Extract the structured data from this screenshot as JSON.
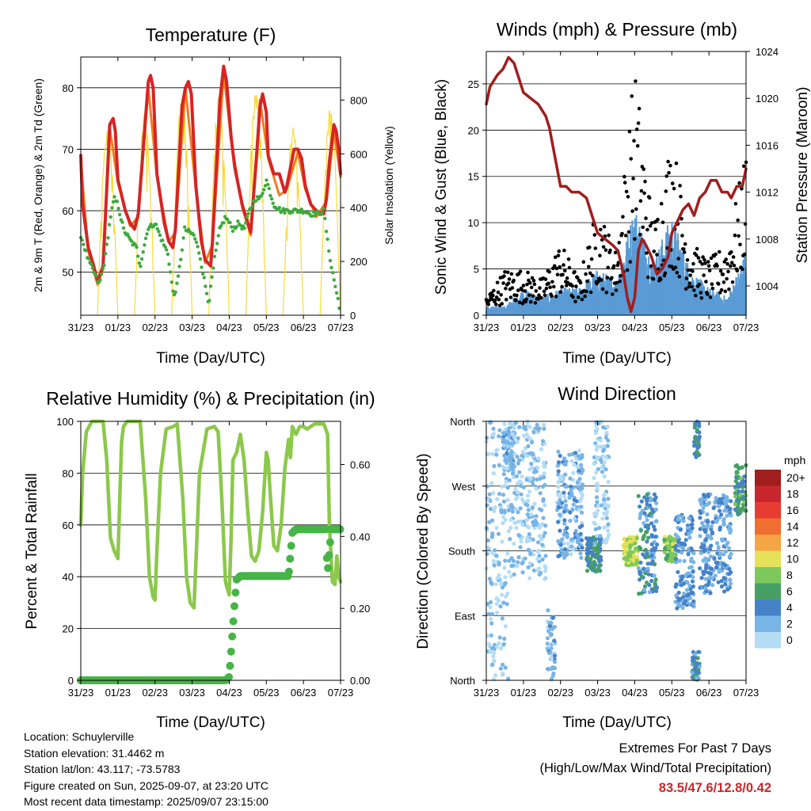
{
  "days": [
    "31/23",
    "01/23",
    "02/23",
    "03/23",
    "04/23",
    "05/23",
    "06/23",
    "07/23"
  ],
  "panels": {
    "temperature": {
      "title": "Temperature (F)",
      "ylabel_left": "2m & 9m T (Red, Orange) & 2m Td (Green)",
      "ylabel_right": "Solar Insolation (Yellow)",
      "xlabel": "Time (Day/UTC)"
    },
    "winds": {
      "title": "Winds (mph) & Pressure (mb)",
      "ylabel_left": "Sonic Wind & Gust (Blue, Black)",
      "ylabel_right": "Station Pressure (Maroon)",
      "xlabel": "Time (Day/UTC)"
    },
    "humidity": {
      "title": "Relative Humidity (%) & Precipitation (in)",
      "ylabel_left": "Percent & Total Rainfall",
      "xlabel": "Time (Day/UTC)"
    },
    "direction": {
      "title": "Wind Direction",
      "ylabel_left": "Direction (Colored By Speed)",
      "xlabel": "Time (Day/UTC)",
      "legend_title": "mph"
    }
  },
  "info": {
    "location": "Location: Schuylerville",
    "elevation": "Station elevation: 31.4462 m",
    "latlon": "Station lat/lon: 43.117; -73.5783",
    "created": "Figure created on Sun, 2025-09-07, at 23:20 UTC",
    "recent": "Most recent data timestamp: 2025/09/07 23:15:00"
  },
  "extremes": {
    "title": "Extremes For Past 7 Days",
    "subtitle": "(High/Low/Max Wind/Total Precipitation)",
    "values": "83.5/47.6/12.8/0.42"
  },
  "chart_data": [
    {
      "type": "line",
      "title": "Temperature (F)",
      "xlabel": "Time (Day/UTC)",
      "ylabel": "2m & 9m T (Red, Orange) & 2m Td (Green)",
      "y2label": "Solar Insolation (Yellow)",
      "x_range_days": [
        0,
        7
      ],
      "ylim": [
        43,
        85
      ],
      "y_ticks": [
        50,
        60,
        70,
        80
      ],
      "y2lim": [
        0,
        960
      ],
      "y2_ticks": [
        0,
        200,
        400,
        600,
        800
      ],
      "grid": true,
      "series": [
        {
          "name": "2m T",
          "color": "#d62424",
          "axis": "left",
          "x": [
            0,
            0.05,
            0.2,
            0.35,
            0.45,
            0.6,
            0.72,
            0.78,
            0.87,
            0.93,
            1,
            1.2,
            1.33,
            1.45,
            1.55,
            1.73,
            1.82,
            1.88,
            1.95,
            2.05,
            2.25,
            2.37,
            2.48,
            2.55,
            2.73,
            2.82,
            2.9,
            2.98,
            3.1,
            3.25,
            3.35,
            3.5,
            3.55,
            3.75,
            3.85,
            3.93,
            4.05,
            4.15,
            4.35,
            4.55,
            4.58,
            4.75,
            4.83,
            4.9,
            5.0,
            5.05,
            5.2,
            5.35,
            5.5,
            5.55,
            5.75,
            5.85,
            5.95,
            6.05,
            6.2,
            6.35,
            6.5,
            6.55,
            6.62,
            6.7,
            6.78,
            6.82,
            6.88,
            6.95,
            7
          ],
          "y": [
            69,
            61,
            54,
            51,
            48.5,
            51,
            66,
            74,
            75,
            73,
            65,
            60,
            58,
            57,
            59.5,
            74,
            81,
            82,
            80,
            66,
            58,
            55,
            54,
            57,
            77,
            80,
            81,
            79,
            64,
            55,
            52,
            51,
            55,
            78,
            83.5,
            81,
            72,
            67,
            61,
            57,
            56.5,
            70,
            77,
            79,
            76,
            69,
            66,
            66,
            63,
            64,
            70,
            70,
            68.5,
            64,
            61,
            60,
            59.5,
            59.5,
            62,
            68,
            72,
            74,
            73,
            70,
            66
          ]
        },
        {
          "name": "9m T",
          "color": "#f07d1e",
          "axis": "left",
          "x": [
            0,
            0.2,
            0.45,
            0.6,
            0.78,
            1,
            1.33,
            1.55,
            1.82,
            2.05,
            2.37,
            2.55,
            2.82,
            3.1,
            3.35,
            3.55,
            3.85,
            4.05,
            4.35,
            4.58,
            4.83,
            5.05,
            5.35,
            5.55,
            5.85,
            6.05,
            6.35,
            6.62,
            6.82,
            7
          ],
          "y": [
            68,
            53.5,
            48,
            50.5,
            73.5,
            64.5,
            57.5,
            59,
            80,
            65.5,
            55,
            56.5,
            80,
            63.5,
            51.5,
            54.5,
            82.5,
            71.5,
            60.5,
            56,
            78,
            68.5,
            62.5,
            63.5,
            69.5,
            63.5,
            59,
            61.5,
            73,
            65.5
          ]
        },
        {
          "name": "2m Td",
          "color": "#3daa3d",
          "axis": "left",
          "x": [
            0,
            0.2,
            0.35,
            0.5,
            0.65,
            0.8,
            0.9,
            1,
            1.15,
            1.35,
            1.5,
            1.6,
            1.8,
            2,
            2.2,
            2.35,
            2.5,
            2.6,
            2.8,
            3.05,
            3.2,
            3.35,
            3.45,
            3.6,
            3.75,
            3.9,
            4.1,
            4.25,
            4.4,
            4.55,
            4.7,
            4.85,
            5.0,
            5.2,
            5.4,
            5.6,
            5.8,
            6.0,
            6.2,
            6.4,
            6.55,
            6.65,
            6.75,
            6.85,
            6.95,
            7
          ],
          "y": [
            56,
            52,
            50,
            48,
            52,
            59,
            62,
            61,
            57,
            55,
            54,
            51,
            57,
            58,
            55,
            53,
            46,
            48,
            57,
            56,
            53,
            48,
            45,
            52,
            57,
            59,
            57,
            58,
            57,
            60,
            62,
            62,
            65,
            61,
            60,
            60,
            60,
            60,
            59.5,
            59.5,
            60,
            55,
            51,
            48,
            45,
            42
          ]
        },
        {
          "name": "Solar Insolation",
          "color": "#f5dc3c",
          "axis": "right",
          "type": "area_pulses",
          "days": [
            0,
            1,
            2,
            3,
            4,
            5,
            6
          ],
          "peaks": [
            720,
            760,
            840,
            830,
            880,
            720,
            800
          ]
        }
      ]
    },
    {
      "type": "scatter",
      "title": "Winds (mph) & Pressure (mb)",
      "xlabel": "Time (Day/UTC)",
      "ylabel": "Sonic Wind & Gust (Blue, Black)",
      "y2label": "Station Pressure (Maroon)",
      "x_range_days": [
        0,
        7
      ],
      "ylim": [
        0,
        28.5
      ],
      "y_ticks": [
        0,
        5,
        10,
        15,
        20,
        25
      ],
      "y2lim": [
        1001.5,
        1024
      ],
      "y2_ticks": [
        1004,
        1008,
        1012,
        1016,
        1020,
        1024
      ],
      "grid": true,
      "series": [
        {
          "name": "Sonic Wind",
          "color": "#5a9bd5",
          "axis": "left",
          "envelope_days": [
            0,
            0.5,
            1,
            1.5,
            2,
            2.5,
            3,
            3.5,
            4,
            4.5,
            5,
            5.5,
            6,
            6.5,
            7
          ],
          "envelope_max": [
            1,
            1,
            3,
            2,
            3,
            3,
            5,
            4,
            12,
            6,
            11,
            5,
            3,
            2,
            7
          ]
        },
        {
          "name": "Gust",
          "color": "#000000",
          "axis": "left",
          "envelope_days": [
            0,
            0.5,
            1,
            1.5,
            2,
            2.5,
            3,
            3.5,
            4,
            4.5,
            5,
            5.5,
            6,
            6.5,
            7
          ],
          "envelope_max": [
            2,
            5,
            5,
            4,
            8,
            4,
            12,
            7,
            27.5,
            10,
            20,
            8,
            6,
            8,
            18
          ]
        },
        {
          "name": "Station Pressure",
          "color": "#a01e1e",
          "axis": "right",
          "x": [
            0,
            0.1,
            0.3,
            0.45,
            0.6,
            0.75,
            0.9,
            1.0,
            1.2,
            1.4,
            1.6,
            1.7,
            1.85,
            2.0,
            2.15,
            2.3,
            2.5,
            2.7,
            2.85,
            3.0,
            3.2,
            3.4,
            3.55,
            3.7,
            3.8,
            3.9,
            4.0,
            4.1,
            4.2,
            4.3,
            4.45,
            4.6,
            4.75,
            4.9,
            5.0,
            5.15,
            5.3,
            5.45,
            5.6,
            5.75,
            5.9,
            6.05,
            6.2,
            6.35,
            6.5,
            6.6,
            6.75,
            6.9,
            7
          ],
          "y": [
            1019.5,
            1021,
            1022,
            1022.5,
            1023.5,
            1023,
            1021.5,
            1020.5,
            1020,
            1019.5,
            1018.5,
            1017.5,
            1015,
            1012.5,
            1012.5,
            1012,
            1012,
            1011.5,
            1010,
            1008.5,
            1008,
            1007.5,
            1007,
            1005,
            1003,
            1001.8,
            1003,
            1007,
            1008,
            1007.5,
            1006.5,
            1005,
            1005.5,
            1006.5,
            1008.5,
            1009.5,
            1010.5,
            1011,
            1010,
            1011.5,
            1012,
            1013,
            1013,
            1012,
            1012,
            1011.5,
            1012.5,
            1012.5,
            1014
          ]
        }
      ]
    },
    {
      "type": "line",
      "title": "Relative Humidity (%) & Precipitation (in)",
      "xlabel": "Time (Day/UTC)",
      "ylabel": "Percent & Total Rainfall",
      "x_range_days": [
        0,
        7
      ],
      "ylim": [
        0,
        100
      ],
      "y_ticks": [
        0,
        20,
        40,
        60,
        80,
        100
      ],
      "y2lim": [
        0,
        0.72
      ],
      "y2_ticks": [
        0.0,
        0.2,
        0.4,
        0.6
      ],
      "y2_tick_labels": [
        "0.00",
        "0.20",
        "0.40",
        "0.60"
      ],
      "grid": true,
      "series": [
        {
          "name": "Relative Humidity",
          "color": "#8cc84b",
          "axis": "left",
          "x": [
            0,
            0.05,
            0.15,
            0.3,
            0.5,
            0.6,
            0.7,
            0.8,
            0.9,
            1.0,
            1.05,
            1.1,
            1.15,
            1.25,
            1.45,
            1.6,
            1.75,
            1.85,
            1.95,
            2.0,
            2.05,
            2.15,
            2.3,
            2.5,
            2.6,
            2.75,
            2.85,
            2.95,
            3.05,
            3.1,
            3.2,
            3.4,
            3.6,
            3.7,
            3.8,
            3.9,
            4.0,
            4.05,
            4.1,
            4.2,
            4.3,
            4.4,
            4.5,
            4.6,
            4.7,
            4.8,
            4.9,
            5.0,
            5.05,
            5.1,
            5.2,
            5.3,
            5.4,
            5.5,
            5.6,
            5.65,
            5.7,
            5.8,
            5.9,
            6.0,
            6.1,
            6.2,
            6.3,
            6.45,
            6.55,
            6.6,
            6.65,
            6.7,
            6.78,
            6.85,
            6.9,
            6.95,
            7
          ],
          "y": [
            60,
            80,
            96,
            100,
            100,
            100,
            85,
            55,
            50,
            47,
            70,
            92,
            98,
            100,
            100,
            100,
            70,
            40,
            32,
            31,
            50,
            80,
            97,
            98,
            99,
            70,
            40,
            30,
            28,
            45,
            80,
            97,
            98,
            96,
            70,
            38,
            33,
            55,
            85,
            88,
            95,
            85,
            65,
            48,
            46,
            50,
            65,
            88,
            85,
            73,
            52,
            50,
            60,
            82,
            93,
            86,
            98,
            95,
            98,
            98,
            97,
            98,
            99,
            99,
            99,
            97,
            95,
            60,
            38,
            37,
            48,
            40,
            38
          ]
        },
        {
          "name": "Total Precipitation",
          "color": "#46b446",
          "axis": "right",
          "x": [
            0,
            0.5,
            1.0,
            1.5,
            2.0,
            2.5,
            3.0,
            3.5,
            3.9,
            4.0,
            4.02,
            4.05,
            4.1,
            4.15,
            4.2,
            4.3,
            4.5,
            4.8,
            5.0,
            5.5,
            5.6,
            5.65,
            5.7,
            5.8,
            6.0,
            6.3,
            6.5,
            6.6,
            6.62,
            6.65,
            6.75,
            7
          ],
          "y": [
            0,
            0,
            0,
            0,
            0,
            0,
            0,
            0,
            0,
            0.01,
            0.04,
            0.08,
            0.15,
            0.22,
            0.28,
            0.29,
            0.29,
            0.29,
            0.29,
            0.29,
            0.29,
            0.35,
            0.41,
            0.42,
            0.42,
            0.42,
            0.42,
            0.42,
            0.36,
            0.3,
            0.42,
            0.42
          ]
        }
      ]
    },
    {
      "type": "scatter",
      "title": "Wind Direction",
      "xlabel": "Time (Day/UTC)",
      "ylabel": "Direction (Colored By Speed)",
      "x_range_days": [
        0,
        7
      ],
      "y_categories": [
        "North",
        "East",
        "South",
        "West",
        "North"
      ],
      "y_values_deg": [
        0,
        90,
        180,
        270,
        360
      ],
      "grid": true,
      "legend": {
        "title": "mph",
        "labels": [
          "20+",
          "18",
          "16",
          "14",
          "12",
          "10",
          "8",
          "6",
          "4",
          "2",
          "0"
        ],
        "colors": [
          "#a01e1e",
          "#c8282d",
          "#e63c32",
          "#f06e32",
          "#f5a546",
          "#e6e15a",
          "#7dc85a",
          "#46a064",
          "#4682c8",
          "#78b4e6",
          "#b4dcf5"
        ],
        "placement": "right"
      },
      "clusters": [
        {
          "day_range": [
            0.0,
            0.6
          ],
          "deg_range": [
            0,
            360
          ],
          "speed": 1
        },
        {
          "day_range": [
            0.45,
            0.75
          ],
          "deg_range": [
            300,
            350
          ],
          "speed": 2
        },
        {
          "day_range": [
            0.6,
            1.6
          ],
          "deg_range": [
            140,
            360
          ],
          "speed": 1
        },
        {
          "day_range": [
            1.65,
            1.85
          ],
          "deg_range": [
            0,
            100
          ],
          "speed": 2
        },
        {
          "day_range": [
            1.9,
            2.6
          ],
          "deg_range": [
            170,
            320
          ],
          "speed": 2
        },
        {
          "day_range": [
            2.7,
            3.1
          ],
          "deg_range": [
            150,
            200
          ],
          "speed": 5
        },
        {
          "day_range": [
            2.9,
            3.3
          ],
          "deg_range": [
            190,
            360
          ],
          "speed": 1
        },
        {
          "day_range": [
            3.7,
            4.1
          ],
          "deg_range": [
            160,
            200
          ],
          "speed": 9
        },
        {
          "day_range": [
            4.1,
            4.6
          ],
          "deg_range": [
            120,
            260
          ],
          "speed": 4
        },
        {
          "day_range": [
            4.8,
            5.1
          ],
          "deg_range": [
            165,
            200
          ],
          "speed": 8
        },
        {
          "day_range": [
            5.1,
            5.6
          ],
          "deg_range": [
            100,
            230
          ],
          "speed": 3
        },
        {
          "day_range": [
            5.55,
            5.75
          ],
          "deg_range": [
            0,
            40
          ],
          "speed": 4
        },
        {
          "day_range": [
            5.6,
            5.75
          ],
          "deg_range": [
            310,
            360
          ],
          "speed": 5
        },
        {
          "day_range": [
            5.75,
            6.6
          ],
          "deg_range": [
            120,
            260
          ],
          "speed": 3
        },
        {
          "day_range": [
            6.7,
            7.0
          ],
          "deg_range": [
            230,
            300
          ],
          "speed": 6
        }
      ]
    }
  ]
}
